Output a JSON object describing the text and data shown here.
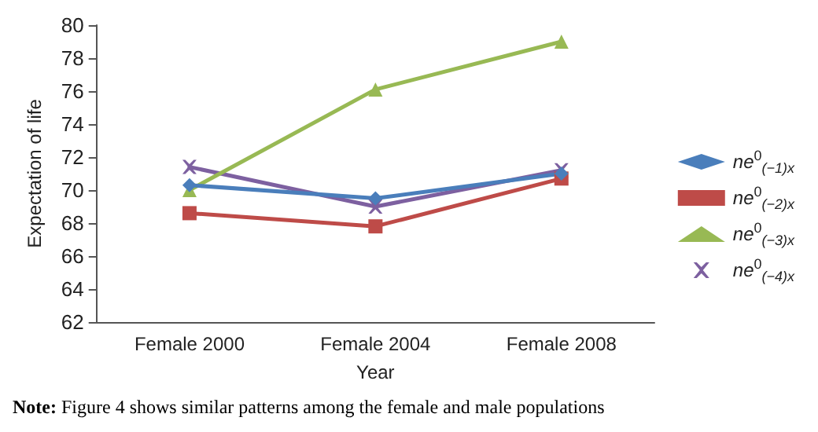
{
  "chart_data": {
    "type": "line",
    "xlabel": "Year",
    "ylabel": "Expectation of life",
    "categories": [
      "Female 2000",
      "Female 2004",
      "Female 2008"
    ],
    "series": [
      {
        "name": "ne$^{0}$$_{(−1)x}$",
        "color": "#4a7ebb",
        "marker": "diamond",
        "values": [
          70.3,
          69.5,
          71.0
        ]
      },
      {
        "name": "ne$^{0}$$_{(−2)x}$",
        "color": "#be4b48",
        "marker": "square",
        "values": [
          68.6,
          67.8,
          70.7
        ]
      },
      {
        "name": "ne$^{0}$$_{(−3)x}$",
        "color": "#98b954",
        "marker": "triangle",
        "values": [
          70.0,
          76.1,
          79.0
        ]
      },
      {
        "name": "ne$^{0}$$_{(−4)x}$",
        "color": "#7d60a0",
        "marker": "cross",
        "values": [
          71.4,
          69.0,
          71.2
        ]
      }
    ],
    "ylim": [
      62,
      80
    ],
    "yticks": [
      62,
      64,
      66,
      68,
      70,
      72,
      74,
      76,
      78,
      80
    ],
    "grid": false,
    "legend": "right",
    "line_style": "solid",
    "annotations": [
      "Note: Figure 4 shows similar patterns among the female and male populations"
    ]
  }
}
